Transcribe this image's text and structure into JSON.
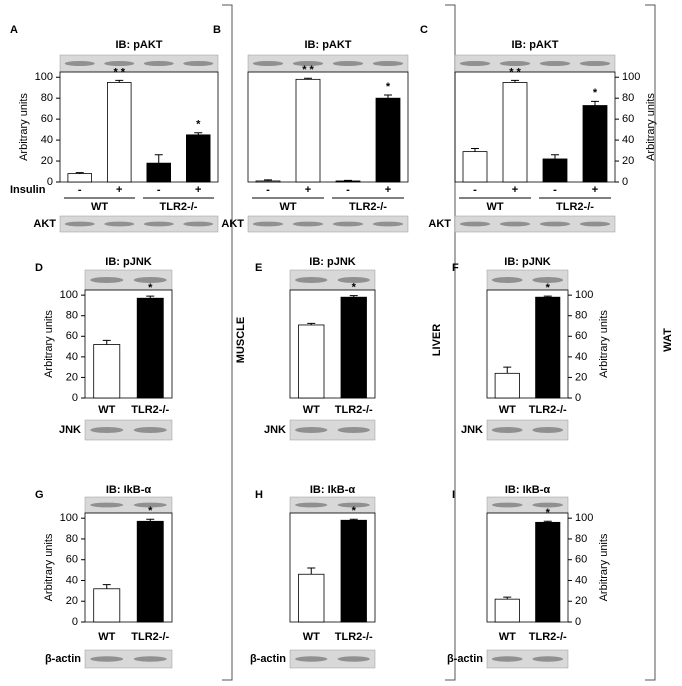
{
  "side_labels": [
    "MUSCLE",
    "LIVER",
    "WAT"
  ],
  "chart_data": [
    {
      "type": "bar",
      "panel": "A",
      "blot_title": "IB: pAKT",
      "loading_label": "AKT",
      "x_label": "Insulin",
      "categories": [
        "-",
        "+",
        "-",
        "+"
      ],
      "groups": [
        "WT",
        "TLR2-/-"
      ],
      "values": [
        8,
        95,
        18,
        45
      ],
      "errors": [
        1,
        2,
        8,
        2
      ],
      "annotations": [
        null,
        "* *",
        null,
        "*"
      ],
      "colors": [
        "#ffffff",
        "#ffffff",
        "#000000",
        "#000000"
      ],
      "y_axis": "left",
      "ylabel": "Arbitrary units",
      "ylim": [
        0,
        105
      ],
      "yticks": [
        0,
        20,
        40,
        60,
        80,
        100
      ]
    },
    {
      "type": "bar",
      "panel": "B",
      "blot_title": "IB: pAKT",
      "loading_label": "AKT",
      "categories": [
        "-",
        "+",
        "-",
        "+"
      ],
      "groups": [
        "WT",
        "TLR2-/-"
      ],
      "values": [
        1,
        98,
        1,
        80
      ],
      "errors": [
        1,
        1,
        0.5,
        3
      ],
      "annotations": [
        null,
        "* *",
        null,
        "*"
      ],
      "colors": [
        "#ffffff",
        "#ffffff",
        "#000000",
        "#000000"
      ],
      "ylim": [
        0,
        105
      ]
    },
    {
      "type": "bar",
      "panel": "C",
      "blot_title": "IB: pAKT",
      "loading_label": "AKT",
      "categories": [
        "-",
        "+",
        "-",
        "+"
      ],
      "groups": [
        "WT",
        "TLR2-/-"
      ],
      "values": [
        29,
        95,
        22,
        73
      ],
      "errors": [
        3,
        2,
        4,
        4
      ],
      "annotations": [
        null,
        "* *",
        null,
        "*"
      ],
      "colors": [
        "#ffffff",
        "#ffffff",
        "#000000",
        "#000000"
      ],
      "y_axis": "right",
      "ylabel": "Arbitrary units",
      "ylim": [
        0,
        105
      ],
      "yticks": [
        0,
        20,
        40,
        60,
        80,
        100
      ]
    },
    {
      "type": "bar",
      "panel": "D",
      "blot_title": "IB: pJNK",
      "loading_label": "JNK",
      "categories": [
        "WT",
        "TLR2-/-"
      ],
      "values": [
        52,
        97
      ],
      "errors": [
        4,
        2
      ],
      "annotations": [
        null,
        "*"
      ],
      "colors": [
        "#ffffff",
        "#000000"
      ],
      "y_axis": "left",
      "ylabel": "Arbitrary units",
      "ylim": [
        0,
        105
      ],
      "yticks": [
        0,
        20,
        40,
        60,
        80,
        100
      ]
    },
    {
      "type": "bar",
      "panel": "E",
      "blot_title": "IB: pJNK",
      "loading_label": "JNK",
      "categories": [
        "WT",
        "TLR2-/-"
      ],
      "values": [
        71,
        98
      ],
      "errors": [
        1.5,
        1.5
      ],
      "annotations": [
        null,
        "*"
      ],
      "colors": [
        "#ffffff",
        "#000000"
      ],
      "ylim": [
        0,
        105
      ]
    },
    {
      "type": "bar",
      "panel": "F",
      "blot_title": "IB: pJNK",
      "loading_label": "JNK",
      "categories": [
        "WT",
        "TLR2-/-"
      ],
      "values": [
        24,
        98
      ],
      "errors": [
        6,
        1
      ],
      "annotations": [
        null,
        "*"
      ],
      "colors": [
        "#ffffff",
        "#000000"
      ],
      "y_axis": "right",
      "ylabel": "Arbitrary units",
      "ylim": [
        0,
        105
      ],
      "yticks": [
        0,
        20,
        40,
        60,
        80,
        100
      ]
    },
    {
      "type": "bar",
      "panel": "G",
      "blot_title": "IB: IkB-α",
      "loading_label": "β-actin",
      "categories": [
        "WT",
        "TLR2-/-"
      ],
      "values": [
        32,
        97
      ],
      "errors": [
        4,
        2
      ],
      "annotations": [
        null,
        "*"
      ],
      "colors": [
        "#ffffff",
        "#000000"
      ],
      "y_axis": "left",
      "ylabel": "Arbitrary units",
      "ylim": [
        0,
        105
      ],
      "yticks": [
        0,
        20,
        40,
        60,
        80,
        100
      ]
    },
    {
      "type": "bar",
      "panel": "H",
      "blot_title": "IB: IkB-α",
      "loading_label": "β-actin",
      "categories": [
        "WT",
        "TLR2-/-"
      ],
      "values": [
        46,
        98
      ],
      "errors": [
        6,
        1
      ],
      "annotations": [
        null,
        "*"
      ],
      "colors": [
        "#ffffff",
        "#000000"
      ],
      "ylim": [
        0,
        105
      ]
    },
    {
      "type": "bar",
      "panel": "I",
      "blot_title": "IB: IkB-α",
      "loading_label": "β-actin",
      "categories": [
        "WT",
        "TLR2-/-"
      ],
      "values": [
        22,
        96
      ],
      "errors": [
        2,
        1
      ],
      "annotations": [
        null,
        "*"
      ],
      "colors": [
        "#ffffff",
        "#000000"
      ],
      "y_axis": "right",
      "ylabel": "Arbitrary units",
      "ylim": [
        0,
        105
      ],
      "yticks": [
        0,
        20,
        40,
        60,
        80,
        100
      ]
    }
  ]
}
